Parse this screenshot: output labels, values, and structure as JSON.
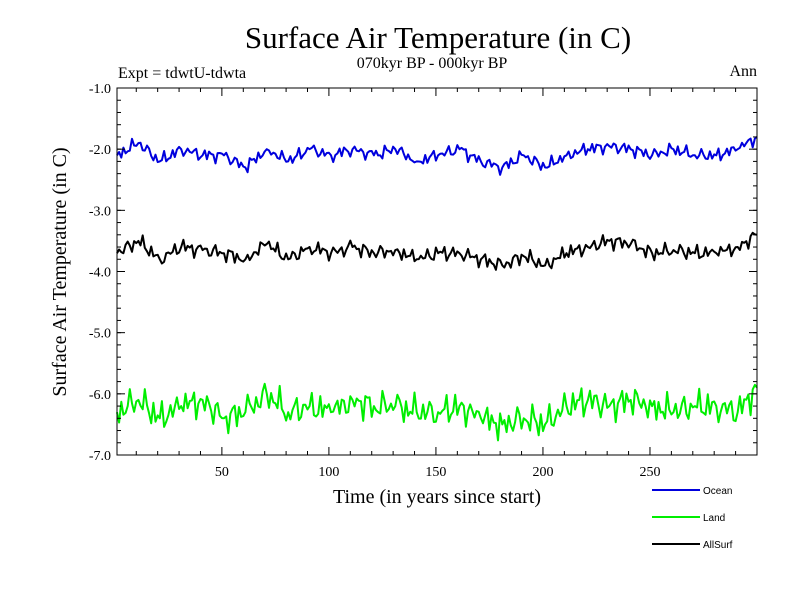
{
  "chart_data": {
    "type": "line",
    "title": "Surface Air Temperature (in C)",
    "subtitle": "070kyr BP - 000kyr BP",
    "experiment_label": "Expt = tdwtU-tdwta",
    "season_label": "Ann",
    "xlabel": "Time (in years since start)",
    "ylabel": "Surface Air Temperature (in C)",
    "xlim": [
      1,
      300
    ],
    "ylim": [
      -7.0,
      -1.0
    ],
    "xticks": [
      50,
      100,
      150,
      200,
      250
    ],
    "xtick_labels": [
      "50",
      "100",
      "150",
      "200",
      "250"
    ],
    "yticks": [
      -1.0,
      -2.0,
      -3.0,
      -4.0,
      -5.0,
      -6.0,
      -7.0
    ],
    "ytick_labels": [
      "-1.0",
      "-2.0",
      "-3.0",
      "-4.0",
      "-5.0",
      "-6.0",
      "-7.0"
    ],
    "x": [
      1,
      11,
      21,
      31,
      41,
      51,
      61,
      71,
      81,
      91,
      101,
      111,
      121,
      131,
      141,
      151,
      161,
      171,
      181,
      191,
      201,
      211,
      221,
      231,
      241,
      251,
      261,
      271,
      281,
      291,
      300
    ],
    "series": [
      {
        "name": "Ocean",
        "color": "#0000dd",
        "values": [
          -2.1,
          -1.9,
          -2.2,
          -2.0,
          -2.1,
          -2.1,
          -2.3,
          -2.0,
          -2.2,
          -2.0,
          -2.1,
          -2.0,
          -2.1,
          -2.0,
          -2.2,
          -2.1,
          -2.0,
          -2.2,
          -2.3,
          -2.1,
          -2.3,
          -2.1,
          -2.0,
          -1.95,
          -2.0,
          -2.1,
          -2.0,
          -2.1,
          -2.1,
          -2.0,
          -1.8
        ]
      },
      {
        "name": "Land",
        "color": "#00ee00",
        "values": [
          -6.3,
          -6.1,
          -6.4,
          -6.2,
          -6.1,
          -6.4,
          -6.3,
          -6.0,
          -6.3,
          -6.2,
          -6.3,
          -6.1,
          -6.2,
          -6.2,
          -6.3,
          -6.3,
          -6.2,
          -6.4,
          -6.5,
          -6.4,
          -6.5,
          -6.2,
          -6.1,
          -6.2,
          -6.1,
          -6.2,
          -6.3,
          -6.2,
          -6.2,
          -6.3,
          -5.9
        ]
      },
      {
        "name": "AllSurf",
        "color": "#000000",
        "values": [
          -3.7,
          -3.5,
          -3.8,
          -3.6,
          -3.65,
          -3.7,
          -3.8,
          -3.55,
          -3.8,
          -3.6,
          -3.7,
          -3.6,
          -3.7,
          -3.65,
          -3.8,
          -3.7,
          -3.7,
          -3.8,
          -3.9,
          -3.75,
          -3.9,
          -3.7,
          -3.6,
          -3.5,
          -3.55,
          -3.7,
          -3.65,
          -3.7,
          -3.7,
          -3.6,
          -3.4
        ]
      }
    ],
    "grid": false,
    "legend_position": "bottom-right"
  }
}
